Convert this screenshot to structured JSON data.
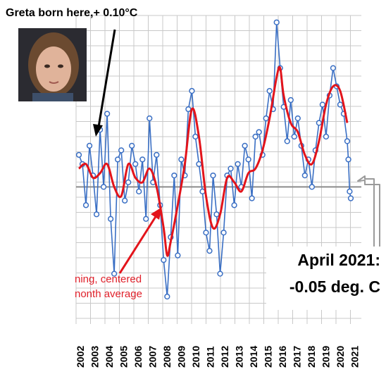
{
  "annotations": {
    "headline": "Greta born here,+ 0.10°C",
    "callout_line1": "April 2021:",
    "callout_line2": "-0.05 deg. C",
    "red_note_line1": "ning, centered",
    "red_note_line2": "nonth average"
  },
  "colors": {
    "monthly_series": "#3a6fc4",
    "running_mean": "#e3141b",
    "grid": "#c8c8c8",
    "zero_line": "#8c8c8c",
    "arrow_black": "#000000",
    "arrow_red": "#e3141b"
  },
  "chart_data": {
    "type": "line",
    "xlabel": "",
    "ylabel": "",
    "x_ticks": [
      "2002",
      "2003",
      "2004",
      "2005",
      "2006",
      "2007",
      "2008",
      "2009",
      "2010",
      "2011",
      "2012",
      "2013",
      "2014",
      "2015",
      "2016",
      "2017",
      "2018",
      "2019",
      "2020",
      "2021"
    ],
    "xlim": [
      2002,
      2021.5
    ],
    "ylim": [
      -0.6,
      0.75
    ],
    "grid": true,
    "zero_line": 0,
    "series": [
      {
        "style": "line-with-circles",
        "x": [
          2002.0,
          2002.25,
          2002.5,
          2002.75,
          2003.0,
          2003.25,
          2003.5,
          2003.75,
          2004.0,
          2004.25,
          2004.5,
          2004.75,
          2005.0,
          2005.25,
          2005.5,
          2005.75,
          2006.0,
          2006.25,
          2006.5,
          2006.75,
          2007.0,
          2007.25,
          2007.5,
          2007.75,
          2008.0,
          2008.25,
          2008.5,
          2008.75,
          2009.0,
          2009.25,
          2009.5,
          2009.75,
          2010.0,
          2010.25,
          2010.5,
          2010.75,
          2011.0,
          2011.25,
          2011.5,
          2011.75,
          2012.0,
          2012.25,
          2012.5,
          2012.75,
          2013.0,
          2013.25,
          2013.5,
          2013.75,
          2014.0,
          2014.25,
          2014.5,
          2014.75,
          2015.0,
          2015.25,
          2015.5,
          2015.75,
          2016.0,
          2016.25,
          2016.5,
          2016.75,
          2017.0,
          2017.25,
          2017.5,
          2017.75,
          2018.0,
          2018.25,
          2018.5,
          2018.75,
          2019.0,
          2019.25,
          2019.5,
          2019.75,
          2020.0,
          2020.25,
          2020.5,
          2020.75,
          2021.0,
          2021.08,
          2021.17,
          2021.25
        ],
        "values": [
          0.14,
          0.1,
          -0.08,
          0.18,
          0.05,
          -0.12,
          0.25,
          0.0,
          0.32,
          -0.14,
          -0.38,
          0.12,
          0.16,
          -0.06,
          0.02,
          0.18,
          0.1,
          -0.02,
          0.12,
          -0.14,
          0.3,
          0.02,
          0.14,
          -0.08,
          -0.32,
          -0.48,
          -0.22,
          0.05,
          -0.3,
          0.12,
          0.05,
          0.34,
          0.42,
          0.22,
          0.1,
          -0.02,
          -0.2,
          -0.28,
          0.05,
          -0.12,
          -0.38,
          -0.2,
          0.05,
          0.08,
          -0.08,
          0.1,
          0.0,
          0.18,
          0.12,
          -0.05,
          0.22,
          0.24,
          0.14,
          0.3,
          0.42,
          0.34,
          0.72,
          0.52,
          0.35,
          0.2,
          0.38,
          0.22,
          0.3,
          0.18,
          0.05,
          0.12,
          0.0,
          0.16,
          0.28,
          0.36,
          0.22,
          0.4,
          0.52,
          0.44,
          0.36,
          0.32,
          0.2,
          0.12,
          -0.02,
          -0.05
        ]
      },
      {
        "style": "smooth-line",
        "x": [
          2002.0,
          2002.5,
          2003.0,
          2003.5,
          2004.0,
          2004.5,
          2005.0,
          2005.5,
          2006.0,
          2006.5,
          2007.0,
          2007.5,
          2008.0,
          2008.25,
          2008.5,
          2009.0,
          2009.5,
          2010.0,
          2010.5,
          2011.0,
          2011.5,
          2012.0,
          2012.5,
          2013.0,
          2013.5,
          2014.0,
          2014.5,
          2015.0,
          2015.5,
          2016.0,
          2016.25,
          2016.5,
          2017.0,
          2017.5,
          2018.0,
          2018.5,
          2019.0,
          2019.5,
          2020.0,
          2020.5,
          2021.0
        ],
        "values": [
          0.08,
          0.1,
          0.04,
          0.06,
          0.1,
          0.0,
          -0.04,
          0.1,
          0.04,
          0.02,
          0.08,
          0.0,
          -0.18,
          -0.3,
          -0.24,
          -0.08,
          0.1,
          0.34,
          0.22,
          -0.04,
          -0.18,
          -0.12,
          0.04,
          0.02,
          -0.02,
          0.06,
          0.08,
          0.16,
          0.3,
          0.48,
          0.52,
          0.4,
          0.28,
          0.24,
          0.14,
          0.1,
          0.2,
          0.36,
          0.44,
          0.42,
          0.28
        ]
      }
    ]
  }
}
